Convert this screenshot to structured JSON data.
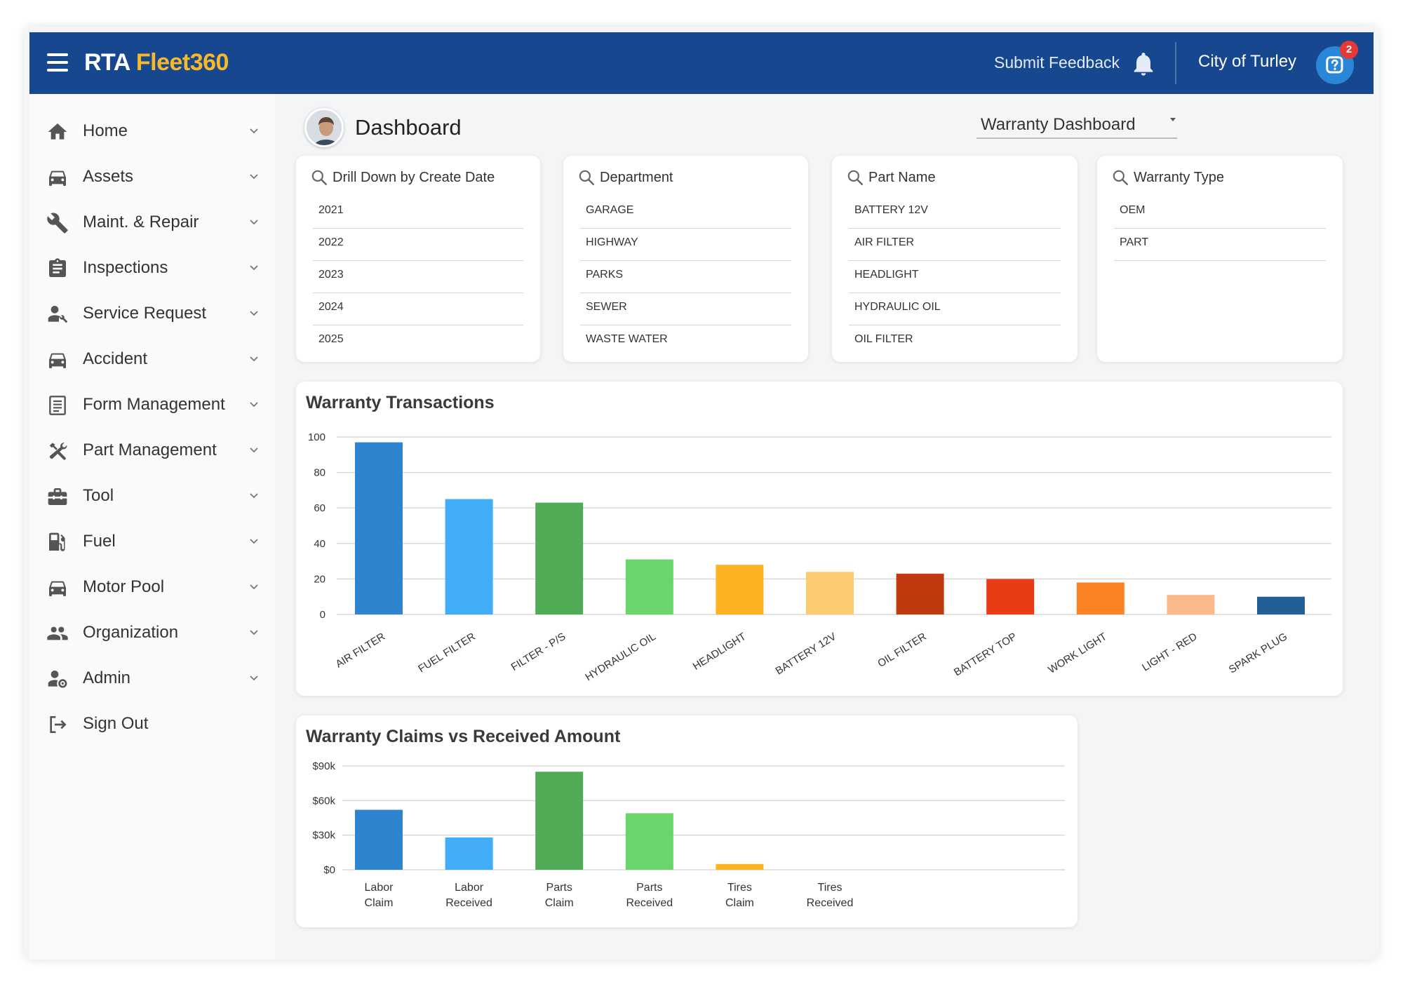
{
  "app": {
    "logo_primary": "RTA",
    "logo_secondary": "Fleet360",
    "submit_feedback": "Submit Feedback",
    "organization": "City of Turley",
    "help_badge_count": "2"
  },
  "sidebar": {
    "items": [
      {
        "label": "Home",
        "icon": "home-icon"
      },
      {
        "label": "Assets",
        "icon": "car-icon"
      },
      {
        "label": "Maint. & Repair",
        "icon": "wrench-icon"
      },
      {
        "label": "Inspections",
        "icon": "clipboard-icon"
      },
      {
        "label": "Service Request",
        "icon": "person-wrench-icon"
      },
      {
        "label": "Accident",
        "icon": "car-icon"
      },
      {
        "label": "Form Management",
        "icon": "form-icon"
      },
      {
        "label": "Part Management",
        "icon": "tools-icon"
      },
      {
        "label": "Tool",
        "icon": "toolbox-icon"
      },
      {
        "label": "Fuel",
        "icon": "fuel-icon"
      },
      {
        "label": "Motor Pool",
        "icon": "car-icon"
      },
      {
        "label": "Organization",
        "icon": "people-icon"
      },
      {
        "label": "Admin",
        "icon": "admin-gear-icon"
      },
      {
        "label": "Sign Out",
        "icon": "sign-out-icon"
      }
    ]
  },
  "header": {
    "title": "Dashboard",
    "dashboard_select": "Warranty Dashboard"
  },
  "filters": [
    {
      "title": "Drill Down by Create Date",
      "items": [
        "2021",
        "2022",
        "2023",
        "2024",
        "2025"
      ]
    },
    {
      "title": "Department",
      "items": [
        "GARAGE",
        "HIGHWAY",
        "PARKS",
        "SEWER",
        "WASTE WATER"
      ]
    },
    {
      "title": "Part Name",
      "items": [
        "BATTERY 12V",
        "AIR FILTER",
        "HEADLIGHT",
        "HYDRAULIC OIL",
        "OIL FILTER"
      ]
    },
    {
      "title": "Warranty Type",
      "items": [
        "OEM",
        "PART"
      ]
    }
  ],
  "chart_data": [
    {
      "type": "bar",
      "title": "Warranty Transactions",
      "categories": [
        "AIR FILTER",
        "FUEL FILTER",
        "FILTER - P/S",
        "HYDRAULIC OIL",
        "HEADLIGHT",
        "BATTERY 12V",
        "OIL FILTER",
        "BATTERY TOP",
        "WORK LIGHT",
        "LIGHT - RED",
        "SPARK PLUG"
      ],
      "values": [
        97,
        65,
        63,
        31,
        28,
        24,
        23,
        20,
        18,
        11,
        10
      ],
      "colors": [
        "#2f84cf",
        "#42adf7",
        "#4fab55",
        "#69d56a",
        "#fbb321",
        "#fbcb6f",
        "#c0390f",
        "#ea3b17",
        "#fd8221",
        "#f9b98b",
        "#225f96"
      ],
      "ylim": [
        0,
        100
      ],
      "yticks": [
        0,
        20,
        40,
        60,
        80,
        100
      ],
      "ytick_labels": [
        "0",
        "20",
        "40",
        "60",
        "80",
        "100"
      ],
      "xlabel": "",
      "ylabel": ""
    },
    {
      "type": "bar",
      "title": "Warranty Claims vs Received Amount",
      "categories": [
        [
          "Labor",
          "Claim"
        ],
        [
          "Labor",
          "Received"
        ],
        [
          "Parts",
          "Claim"
        ],
        [
          "Parts",
          "Received"
        ],
        [
          "Tires",
          "Claim"
        ],
        [
          "Tires",
          "Received"
        ]
      ],
      "values": [
        52000,
        28000,
        85000,
        49000,
        5000,
        0
      ],
      "colors": [
        "#2f84cf",
        "#42adf7",
        "#4fab55",
        "#69d56a",
        "#fbb321",
        "#fbcb6f"
      ],
      "ylim": [
        0,
        90000
      ],
      "yticks": [
        0,
        30000,
        60000,
        90000
      ],
      "ytick_labels": [
        "$0",
        "$30k",
        "$60k",
        "$90k"
      ],
      "xlabel": "",
      "ylabel": ""
    }
  ]
}
